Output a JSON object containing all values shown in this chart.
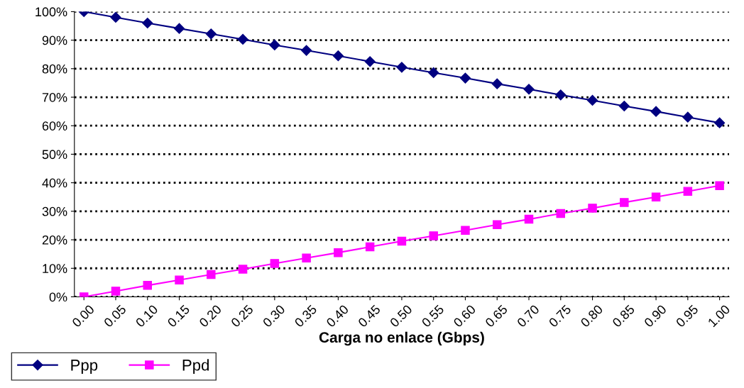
{
  "chart_data": {
    "type": "line",
    "xlabel": "Carga no enlace (Gbps)",
    "categories": [
      "0.00",
      "0.05",
      "0.10",
      "0.15",
      "0.20",
      "0.25",
      "0.30",
      "0.35",
      "0.40",
      "0.45",
      "0.50",
      "0.55",
      "0.60",
      "0.65",
      "0.70",
      "0.75",
      "0.80",
      "0.85",
      "0.90",
      "0.95",
      "1.00"
    ],
    "series": [
      {
        "name": "Ppp",
        "color": "#000080",
        "marker": "diamond",
        "values": [
          100,
          98,
          96,
          94.1,
          92.2,
          90.3,
          88.3,
          86.4,
          84.5,
          82.5,
          80.5,
          78.6,
          76.7,
          74.7,
          72.8,
          70.8,
          68.9,
          66.9,
          65,
          63,
          61
        ]
      },
      {
        "name": "Ppd",
        "color": "#ff00ff",
        "marker": "square",
        "values": [
          0,
          2,
          4,
          5.9,
          7.8,
          9.7,
          11.7,
          13.6,
          15.5,
          17.5,
          19.5,
          21.4,
          23.3,
          25.3,
          27.2,
          29.2,
          31.1,
          33.1,
          35,
          37,
          39
        ]
      }
    ],
    "ylim": [
      0,
      100
    ],
    "yticks": [
      {
        "value": 0,
        "label": "0%"
      },
      {
        "value": 10,
        "label": "10%"
      },
      {
        "value": 20,
        "label": "20%"
      },
      {
        "value": 30,
        "label": "30%"
      },
      {
        "value": 40,
        "label": "40%"
      },
      {
        "value": 50,
        "label": "50%"
      },
      {
        "value": 60,
        "label": "60%"
      },
      {
        "value": 70,
        "label": "70%"
      },
      {
        "value": 80,
        "label": "80%"
      },
      {
        "value": 90,
        "label": "90%"
      },
      {
        "value": 100,
        "label": "100%"
      }
    ],
    "grid": "y",
    "line_style": "solid",
    "legend": "bottom left"
  }
}
